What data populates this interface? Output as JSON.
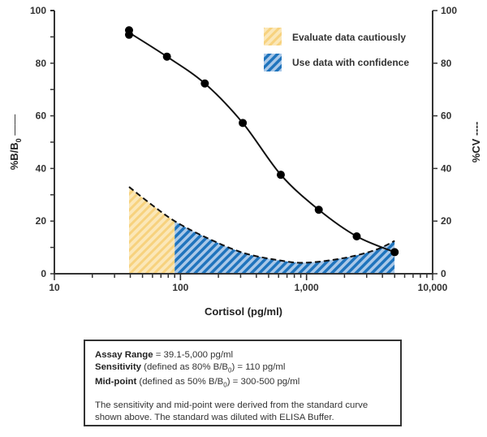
{
  "chart_data": {
    "type": "line",
    "x_scale": "log",
    "xlim": [
      10,
      10000
    ],
    "ylim": [
      0,
      100
    ],
    "y2lim": [
      0,
      100
    ],
    "xlabel": "Cortisol (pg/ml)",
    "ylabel_left": {
      "main": "%B/B",
      "sub": "0",
      "line": "——"
    },
    "ylabel_right": {
      "main": "%CV",
      "line": "----"
    },
    "x_ticks": [
      10,
      100,
      1000,
      10000
    ],
    "x_tick_labels": [
      "10",
      "100",
      "1,000",
      "10,000"
    ],
    "y_ticks": [
      0,
      20,
      40,
      60,
      80,
      100
    ],
    "y_tick_labels": [
      "0",
      "20",
      "40",
      "60",
      "80",
      "100"
    ],
    "y2_tick_labels": [
      "0",
      "20",
      "40",
      "60",
      "80",
      "100"
    ],
    "series": [
      {
        "type": "scatter+smooth-line",
        "axis": "left",
        "x": [
          39.1,
          39.1,
          78.1,
          156,
          312,
          625,
          1250,
          2500,
          5000
        ],
        "y": [
          92.5,
          90.8,
          82.5,
          72.3,
          57.3,
          37.6,
          24.3,
          14.2,
          8.2
        ],
        "color": "#000000"
      },
      {
        "type": "dashed-area",
        "axis": "right",
        "x": [
          39.1,
          60,
          90,
          156,
          312,
          625,
          1000,
          2000,
          3500,
          5000
        ],
        "y": [
          33,
          26,
          20,
          14,
          8,
          5,
          4.2,
          6,
          9,
          12.5
        ],
        "regions": [
          {
            "from": 39.1,
            "to": 90,
            "color": "#f5c96a",
            "legend": "Evaluate data cautiously"
          },
          {
            "from": 90,
            "to": 5000,
            "color": "#1f78c1",
            "legend": "Use data with confidence"
          }
        ]
      }
    ],
    "legend": {
      "placement": "top-right",
      "items": [
        "Evaluate data cautiously",
        "Use data with confidence"
      ]
    },
    "grid": false
  },
  "info_box": {
    "line1": {
      "bold": "Assay Range",
      "text": " = 39.1-5,000 pg/ml"
    },
    "line2": {
      "bold": "Sensitivity",
      "text_a": " (defined as 80% B/B",
      "sub": "0",
      "text_b": ") = 110 pg/ml"
    },
    "line3": {
      "bold": "Mid-point",
      "text_a": " (defined as 50% B/B",
      "sub": "0",
      "text_b": ") = 300-500 pg/ml"
    },
    "note": "The sensitivity and mid-point were derived from the standard curve shown above. The standard was diluted with ELISA Buffer."
  }
}
